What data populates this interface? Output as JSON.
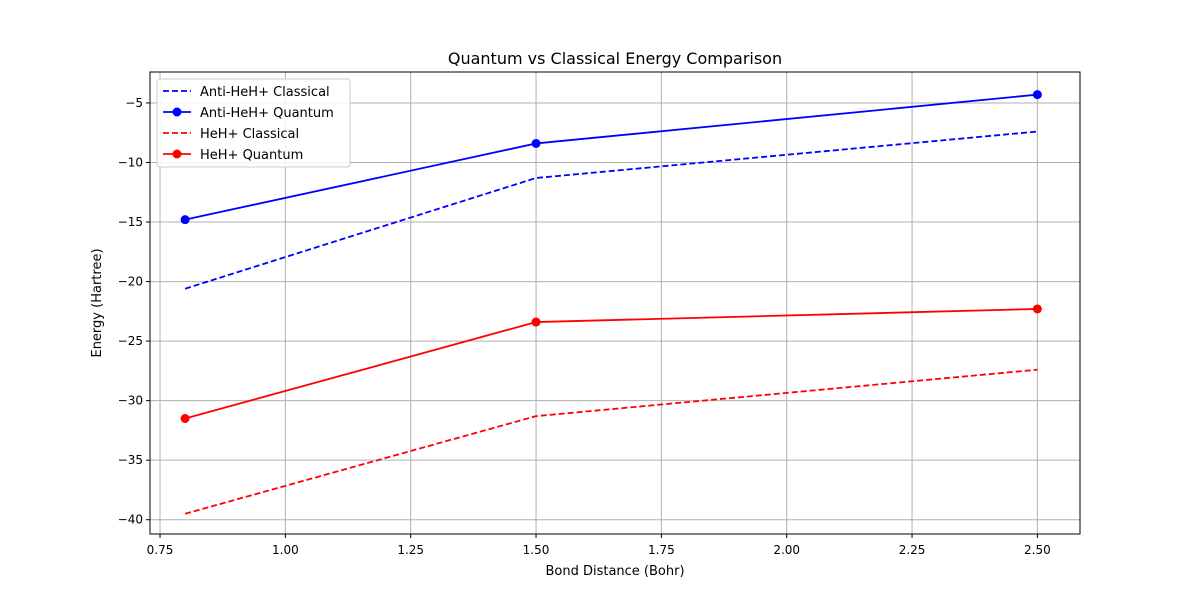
{
  "chart_data": {
    "type": "line",
    "title": "Quantum vs Classical Energy Comparison",
    "xlabel": "Bond Distance (Bohr)",
    "ylabel": "Energy (Hartree)",
    "xlim": [
      0.73,
      2.585
    ],
    "ylim": [
      -41.2,
      -2.4
    ],
    "xticks": [
      0.75,
      1.0,
      1.25,
      1.5,
      1.75,
      2.0,
      2.25,
      2.5
    ],
    "xtick_labels": [
      "0.75",
      "1.00",
      "1.25",
      "1.50",
      "1.75",
      "2.00",
      "2.25",
      "2.50"
    ],
    "yticks": [
      -40,
      -35,
      -30,
      -25,
      -20,
      -15,
      -10,
      -5
    ],
    "ytick_labels": [
      "−40",
      "−35",
      "−30",
      "−25",
      "−20",
      "−15",
      "−10",
      "−5"
    ],
    "grid": true,
    "legend_position": "top-left",
    "series": [
      {
        "name": "Anti-HeH+ Classical",
        "color": "#0000ff",
        "style": "dashed",
        "marker": "none",
        "x": [
          0.8,
          1.5,
          2.5
        ],
        "y": [
          -20.6,
          -11.3,
          -7.4
        ]
      },
      {
        "name": "Anti-HeH+ Quantum",
        "color": "#0000ff",
        "style": "solid",
        "marker": "circle",
        "x": [
          0.8,
          1.5,
          2.5
        ],
        "y": [
          -14.8,
          -8.4,
          -4.3
        ]
      },
      {
        "name": "HeH+ Classical",
        "color": "#ff0000",
        "style": "dashed",
        "marker": "none",
        "x": [
          0.8,
          1.5,
          2.5
        ],
        "y": [
          -39.5,
          -31.3,
          -27.4
        ]
      },
      {
        "name": "HeH+ Quantum",
        "color": "#ff0000",
        "style": "solid",
        "marker": "circle",
        "x": [
          0.8,
          1.5,
          2.5
        ],
        "y": [
          -31.5,
          -23.4,
          -22.3
        ]
      }
    ]
  }
}
